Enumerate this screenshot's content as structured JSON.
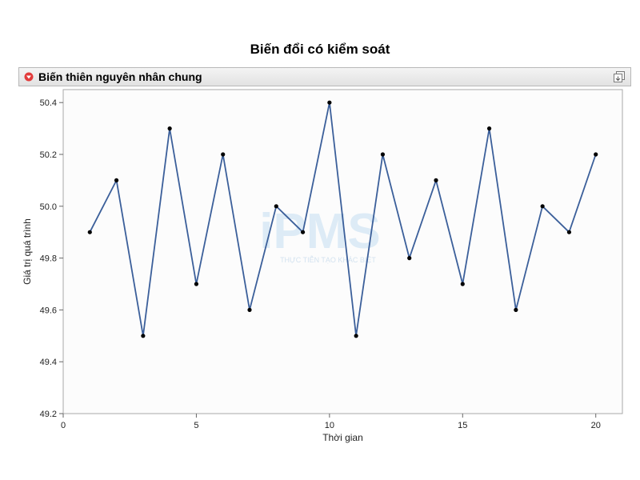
{
  "title": "Biến đổi có kiểm soát",
  "panel": {
    "title": "Biến thiên nguyên nhân chung",
    "collapse_icon": "red-disclosure-triangle-icon",
    "export_icon": "copy-export-icon"
  },
  "chart_data": {
    "type": "line",
    "xlabel": "Thời gian",
    "ylabel": "Giá trị quá trình",
    "xlim": [
      0,
      21
    ],
    "ylim": [
      49.2,
      50.45
    ],
    "x_ticks": [
      0,
      5,
      10,
      15,
      20
    ],
    "y_ticks": [
      49.2,
      49.4,
      49.6,
      49.8,
      50.0,
      50.2,
      50.4
    ],
    "y_tick_labels": [
      "49.2",
      "49.4",
      "49.6",
      "49.8",
      "50.0",
      "50.2",
      "50.4"
    ],
    "grid": false,
    "series": [
      {
        "x": [
          1,
          2,
          3,
          4,
          5,
          6,
          7,
          8,
          9,
          10,
          11,
          12,
          13,
          14,
          15,
          16,
          17,
          18,
          19,
          20
        ],
        "y": [
          49.9,
          50.1,
          49.5,
          50.3,
          49.7,
          50.2,
          49.6,
          50.0,
          49.9,
          50.4,
          49.5,
          50.2,
          49.8,
          50.1,
          49.7,
          50.3,
          49.6,
          50.0,
          49.9,
          50.2
        ],
        "color": "#3b5f9a",
        "marker_color": "#000000"
      }
    ]
  },
  "watermark": {
    "text": "iPMS",
    "tagline": "THỰC TIỄN TẠO KHÁC BIỆT",
    "color": "#cfe4f3"
  }
}
